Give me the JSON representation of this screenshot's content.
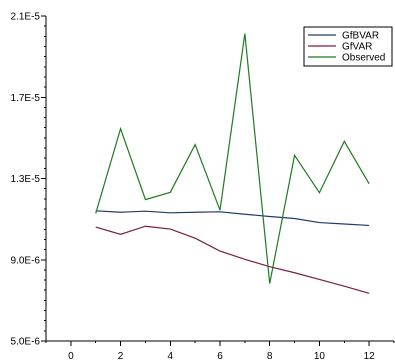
{
  "chart_data": {
    "type": "line",
    "title": "",
    "xlabel": "",
    "ylabel": "",
    "x": [
      1,
      2,
      3,
      4,
      5,
      6,
      7,
      8,
      9,
      10,
      11,
      12
    ],
    "xlim": [
      -1,
      13
    ],
    "ylim": [
      5e-06,
      2.1e-05
    ],
    "x_ticks": [
      0,
      2,
      4,
      6,
      8,
      10,
      12
    ],
    "x_tick_labels": [
      "0",
      "2",
      "4",
      "6",
      "8",
      "10",
      "12"
    ],
    "y_ticks": [
      5e-06,
      9e-06,
      1.3e-05,
      1.7e-05,
      2.1e-05
    ],
    "y_tick_labels": [
      "5.0E-6",
      "9.0E-6",
      "1.3E-5",
      "1.7E-5",
      "2.1E-5"
    ],
    "grid": false,
    "legend_position": "top-right",
    "series": [
      {
        "name": "GfBVAR",
        "color": "#1f3b73",
        "values": [
          1.141e-05,
          1.134e-05,
          1.139e-05,
          1.131e-05,
          1.134e-05,
          1.136e-05,
          1.124e-05,
          1.113e-05,
          1.103e-05,
          1.083e-05,
          1.076e-05,
          1.069e-05
        ]
      },
      {
        "name": "GfVAR",
        "color": "#7d1a45",
        "values": [
          1.061e-05,
          1.025e-05,
          1.065e-05,
          1.051e-05,
          1.006e-05,
          9.43e-06,
          9.02e-06,
          8.66e-06,
          8.36e-06,
          8.03e-06,
          7.7e-06,
          7.35e-06
        ]
      },
      {
        "name": "Observed",
        "color": "#1e7b1e",
        "values": [
          1.128e-05,
          1.545e-05,
          1.196e-05,
          1.232e-05,
          1.467e-05,
          1.144e-05,
          2.013e-05,
          7.83e-06,
          1.414e-05,
          1.23e-05,
          1.483e-05,
          1.274e-05
        ]
      }
    ]
  }
}
